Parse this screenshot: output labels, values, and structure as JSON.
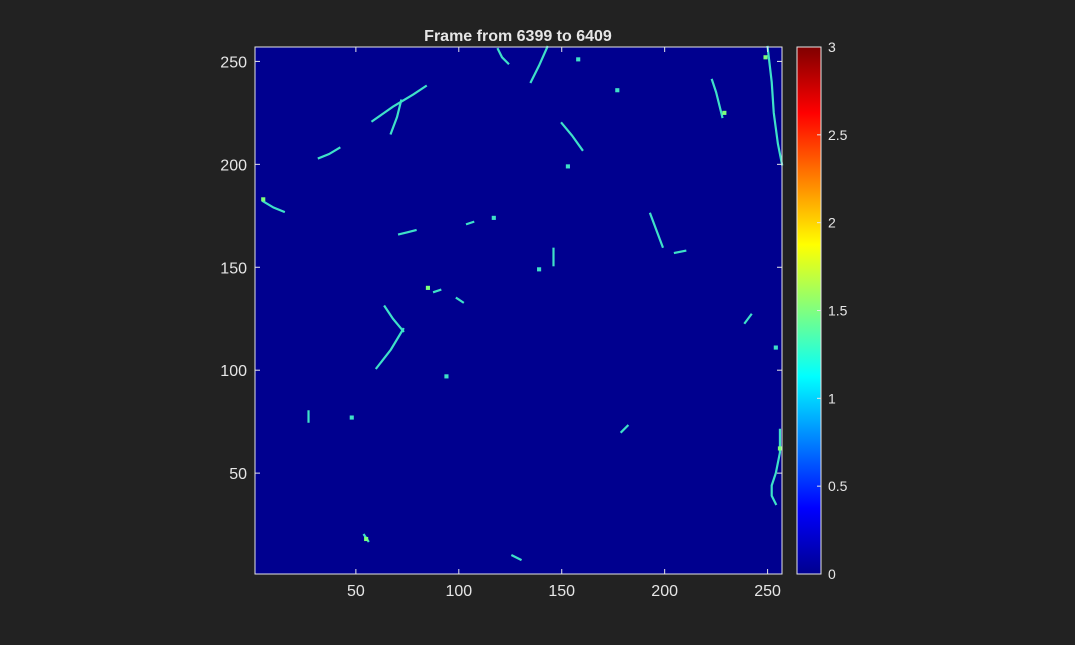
{
  "chart_data": {
    "type": "heatmap",
    "title": "Frame from 6399 to 6409",
    "xlabel": "",
    "ylabel": "",
    "xlim": [
      1,
      257
    ],
    "ylim": [
      1,
      257
    ],
    "x_ticks": [
      50,
      100,
      150,
      200,
      250
    ],
    "y_ticks": [
      50,
      100,
      150,
      200,
      250
    ],
    "colorbar": {
      "colormap": "jet",
      "clim": [
        0,
        3
      ],
      "ticks": [
        "0",
        "0.5",
        "1",
        "1.5",
        "2",
        "2.5",
        "3"
      ]
    },
    "background_value": 0,
    "colors": {
      "figure_bg": "#222222",
      "axes_bg": "#00008f",
      "axis_line": "#e6e6e6",
      "text": "#e6e6e6",
      "track": "#3fe0c8",
      "track_hot": "#7dff7a"
    },
    "tracks": [
      {
        "value": 1.2,
        "points": [
          [
            119,
            256
          ],
          [
            121,
            252
          ],
          [
            124,
            249
          ]
        ]
      },
      {
        "value": 1.2,
        "points": [
          [
            143,
            257
          ],
          [
            139,
            248
          ],
          [
            135,
            240
          ]
        ]
      },
      {
        "value": 1.2,
        "points": [
          [
            158,
            251
          ]
        ]
      },
      {
        "value": 1.2,
        "points": [
          [
            177,
            236
          ]
        ]
      },
      {
        "value": 1.2,
        "points": [
          [
            228,
            223
          ],
          [
            225,
            235
          ],
          [
            223,
            241
          ]
        ]
      },
      {
        "value": 1.6,
        "points": [
          [
            229,
            225
          ]
        ]
      },
      {
        "value": 1.2,
        "points": [
          [
            250,
            257
          ],
          [
            252,
            240
          ],
          [
            253,
            225
          ],
          [
            255,
            210
          ],
          [
            257,
            200
          ]
        ]
      },
      {
        "value": 1.6,
        "points": [
          [
            249,
            252
          ]
        ]
      },
      {
        "value": 1.2,
        "points": [
          [
            58,
            221
          ],
          [
            68,
            228
          ],
          [
            78,
            234
          ],
          [
            84,
            238
          ]
        ]
      },
      {
        "value": 1.2,
        "points": [
          [
            72,
            231
          ],
          [
            70,
            223
          ],
          [
            67,
            215
          ]
        ]
      },
      {
        "value": 1.2,
        "points": [
          [
            32,
            203
          ],
          [
            37,
            205
          ],
          [
            42,
            208
          ]
        ]
      },
      {
        "value": 1.2,
        "points": [
          [
            150,
            220
          ],
          [
            155,
            214
          ],
          [
            160,
            207
          ]
        ]
      },
      {
        "value": 1.2,
        "points": [
          [
            153,
            199
          ]
        ]
      },
      {
        "value": 1.2,
        "points": [
          [
            5,
            182
          ],
          [
            10,
            179
          ],
          [
            15,
            177
          ]
        ]
      },
      {
        "value": 1.6,
        "points": [
          [
            5,
            183
          ]
        ]
      },
      {
        "value": 1.2,
        "points": [
          [
            71,
            166
          ],
          [
            75,
            167
          ],
          [
            79,
            168
          ]
        ]
      },
      {
        "value": 1.2,
        "points": [
          [
            104,
            171
          ],
          [
            107,
            172
          ]
        ]
      },
      {
        "value": 1.2,
        "points": [
          [
            117,
            174
          ]
        ]
      },
      {
        "value": 1.2,
        "points": [
          [
            193,
            176
          ],
          [
            196,
            168
          ],
          [
            199,
            160
          ]
        ]
      },
      {
        "value": 1.2,
        "points": [
          [
            205,
            157
          ],
          [
            210,
            158
          ]
        ]
      },
      {
        "value": 1.2,
        "points": [
          [
            146,
            151
          ],
          [
            146,
            156
          ],
          [
            146,
            159
          ]
        ]
      },
      {
        "value": 1.2,
        "points": [
          [
            139,
            149
          ]
        ]
      },
      {
        "value": 1.6,
        "points": [
          [
            85,
            140
          ]
        ]
      },
      {
        "value": 1.2,
        "points": [
          [
            88,
            138
          ],
          [
            91,
            139
          ]
        ]
      },
      {
        "value": 1.2,
        "points": [
          [
            99,
            135
          ],
          [
            102,
            133
          ]
        ]
      },
      {
        "value": 1.2,
        "points": [
          [
            64,
            131
          ],
          [
            68,
            125
          ],
          [
            73,
            119
          ]
        ]
      },
      {
        "value": 1.2,
        "points": [
          [
            73,
            120
          ],
          [
            67,
            110
          ],
          [
            60,
            101
          ]
        ]
      },
      {
        "value": 1.2,
        "points": [
          [
            239,
            123
          ],
          [
            242,
            127
          ]
        ]
      },
      {
        "value": 1.2,
        "points": [
          [
            254,
            111
          ]
        ]
      },
      {
        "value": 1.2,
        "points": [
          [
            94,
            97
          ]
        ]
      },
      {
        "value": 1.2,
        "points": [
          [
            27,
            75
          ],
          [
            27,
            80
          ]
        ]
      },
      {
        "value": 1.2,
        "points": [
          [
            48,
            77
          ]
        ]
      },
      {
        "value": 1.2,
        "points": [
          [
            179,
            70
          ],
          [
            182,
            73
          ]
        ]
      },
      {
        "value": 1.2,
        "points": [
          [
            256,
            71
          ],
          [
            256,
            60
          ],
          [
            254,
            50
          ],
          [
            252,
            44
          ],
          [
            252,
            39
          ],
          [
            254,
            35
          ]
        ]
      },
      {
        "value": 1.6,
        "points": [
          [
            256,
            62
          ]
        ]
      },
      {
        "value": 1.2,
        "points": [
          [
            54,
            20
          ],
          [
            56,
            17
          ]
        ]
      },
      {
        "value": 1.6,
        "points": [
          [
            55,
            18
          ]
        ]
      },
      {
        "value": 1.2,
        "points": [
          [
            126,
            10
          ],
          [
            130,
            8
          ]
        ]
      }
    ]
  }
}
